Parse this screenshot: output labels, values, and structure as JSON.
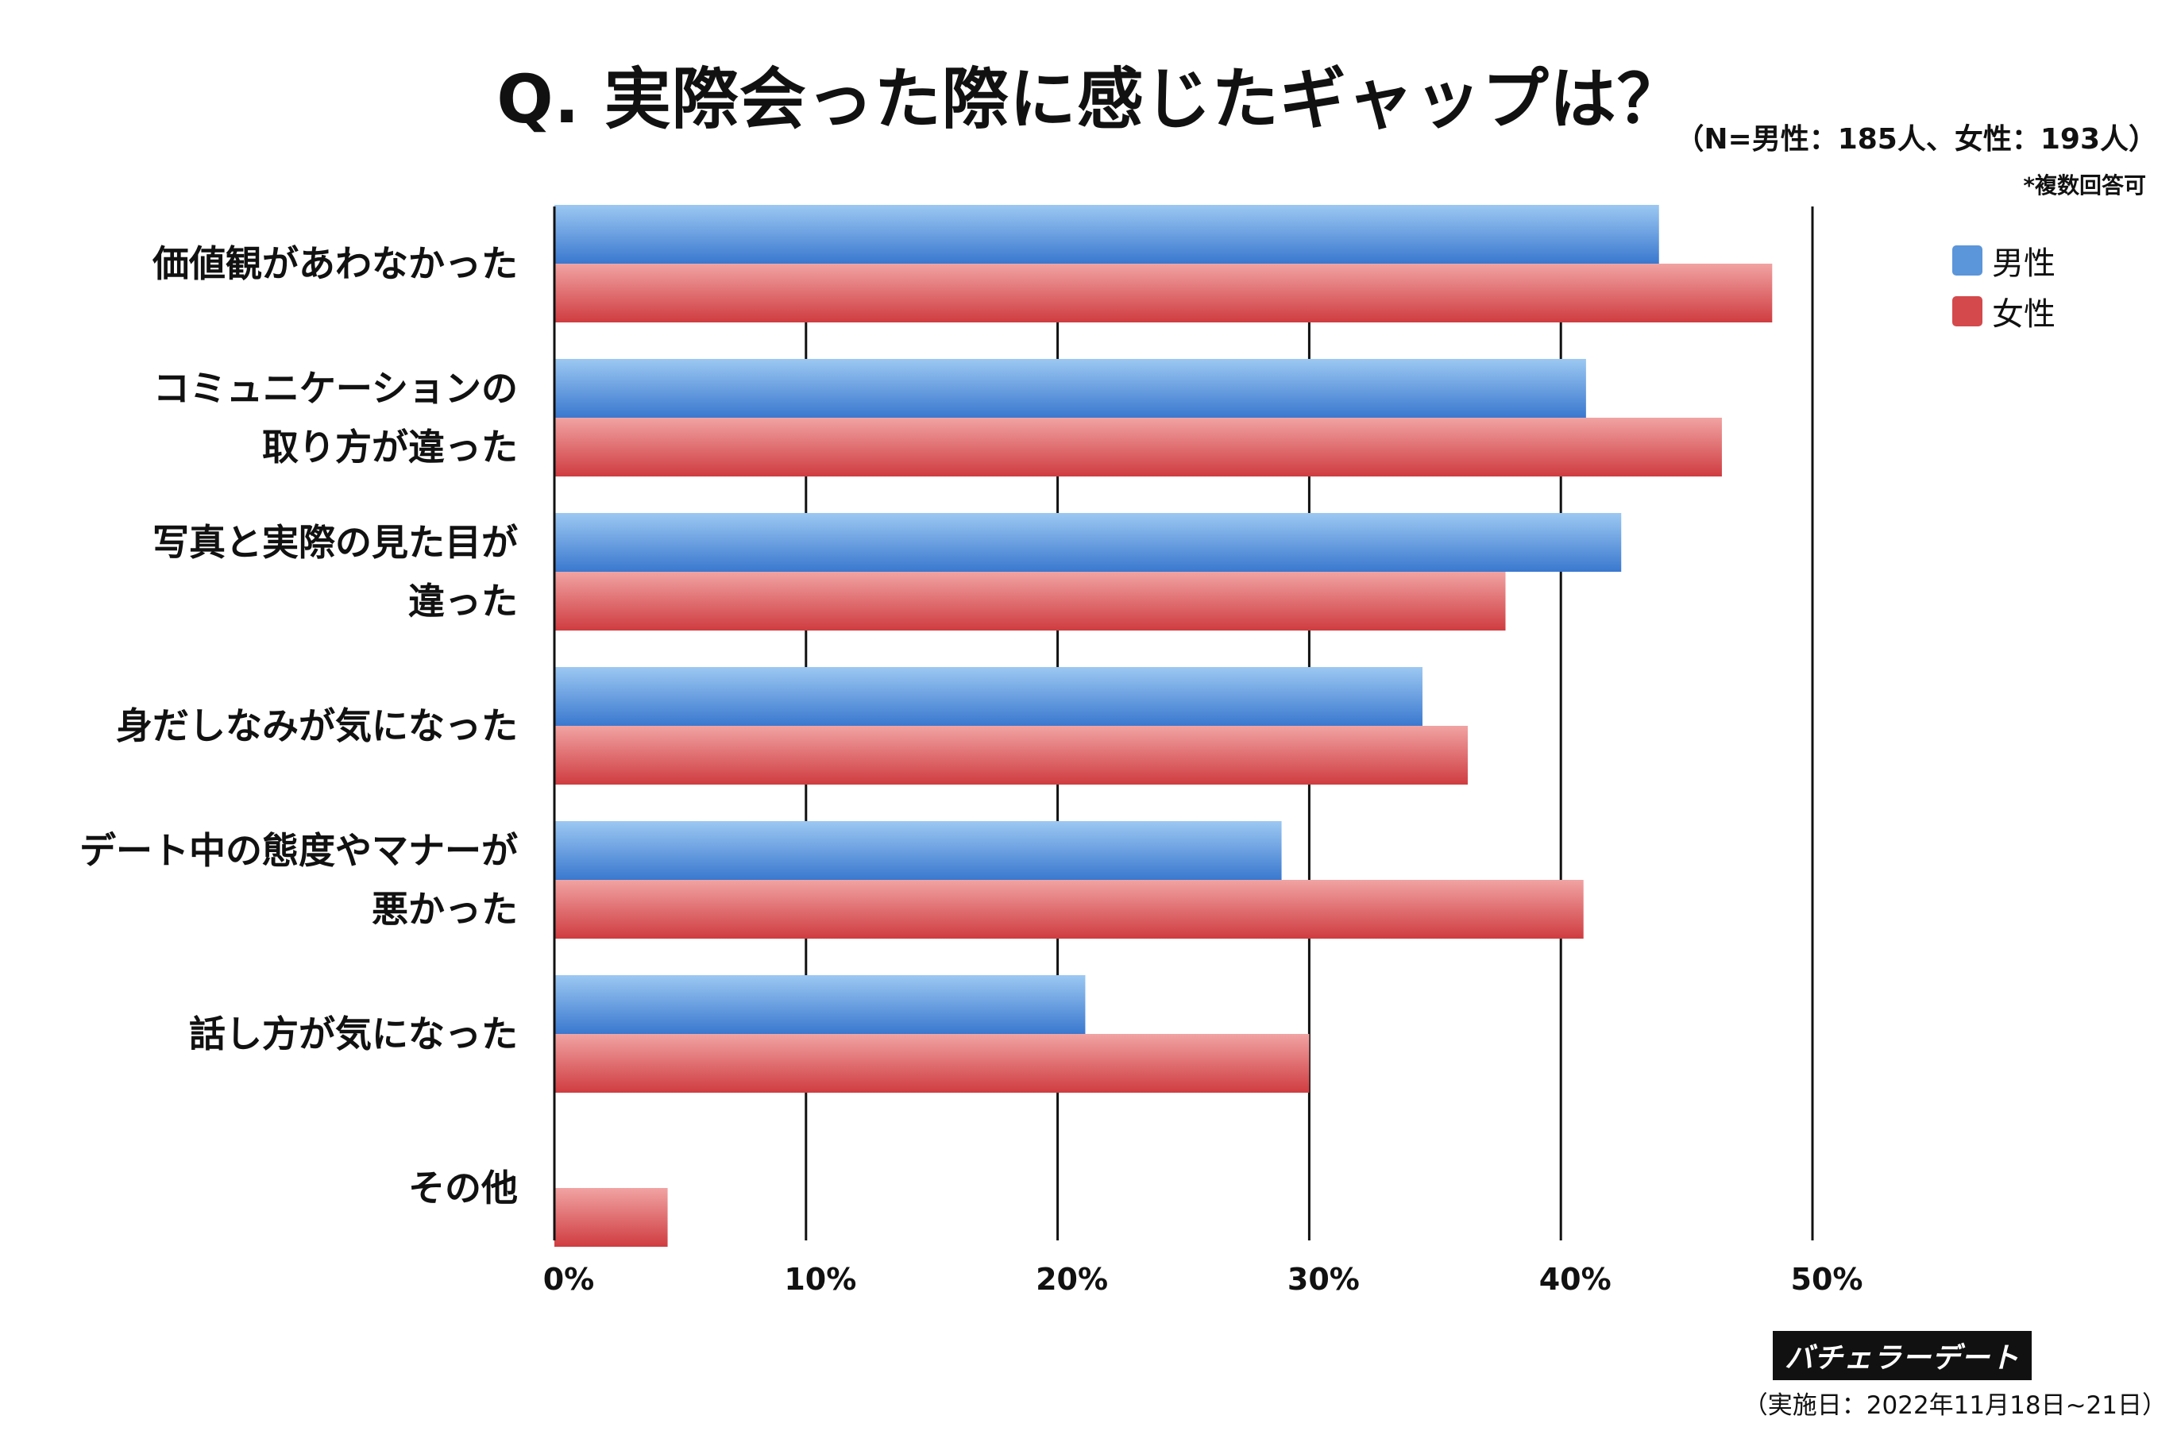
{
  "title": "Q. 実際会った際に感じたギャップは？",
  "sample_note": "（N=男性：185人、女性：193人）",
  "multi_note": "*複数回答可",
  "legend": [
    {
      "label": "男性",
      "color": "#5b95da"
    },
    {
      "label": "女性",
      "color": "#d4494c"
    }
  ],
  "brand": "バチェラーデート",
  "survey_date": "（実施日：2022年11月18日~21日）",
  "colors": {
    "male_light": "#9cc8f2",
    "male_dark": "#3a78cf",
    "female_light": "#f1a3a3",
    "female_dark": "#cf3c40"
  },
  "chart_data": {
    "type": "bar",
    "orientation": "horizontal",
    "categories": [
      [
        "価値観があわなかった"
      ],
      [
        "コミュニケーションの",
        "取り方が違った"
      ],
      [
        "写真と実際の見た目が",
        "違った"
      ],
      [
        "身だしなみが気になった"
      ],
      [
        "デート中の態度やマナーが",
        "悪かった"
      ],
      [
        "話し方が気になった"
      ],
      [
        "その他"
      ]
    ],
    "series": [
      {
        "name": "男性",
        "values": [
          43.9,
          41.0,
          42.4,
          34.5,
          28.9,
          21.1,
          null
        ]
      },
      {
        "name": "女性",
        "values": [
          48.4,
          46.4,
          37.8,
          36.3,
          40.9,
          30.0,
          4.5
        ]
      }
    ],
    "xlim": [
      0,
      50
    ],
    "xticks": [
      "0%",
      "10%",
      "20%",
      "30%",
      "40%",
      "50%"
    ],
    "grid": true,
    "legend_position": "top-right"
  }
}
